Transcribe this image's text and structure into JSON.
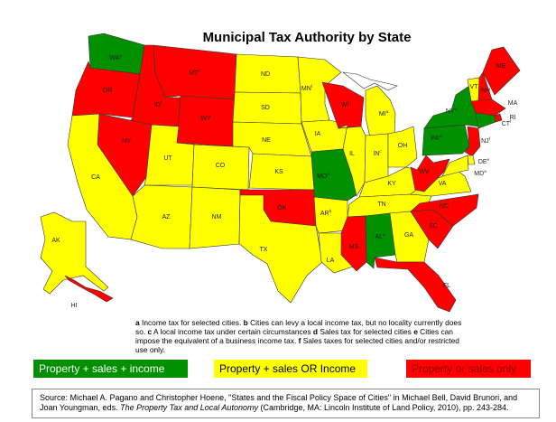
{
  "title": "Municipal Tax Authority by State",
  "colors": {
    "green": "#009000",
    "yellow": "#ffff00",
    "red": "#ff0000",
    "lakes": "#ffffff"
  },
  "states": [
    {
      "abbr": "WA",
      "sup": "a",
      "category": "green"
    },
    {
      "abbr": "OR",
      "sup": "",
      "category": "red"
    },
    {
      "abbr": "ID",
      "sup": "f",
      "category": "red"
    },
    {
      "abbr": "MT",
      "sup": "f",
      "category": "red"
    },
    {
      "abbr": "WY",
      "sup": "",
      "category": "red"
    },
    {
      "abbr": "NV",
      "sup": "",
      "category": "red"
    },
    {
      "abbr": "CA",
      "sup": "",
      "category": "yellow"
    },
    {
      "abbr": "UT",
      "sup": "",
      "category": "yellow"
    },
    {
      "abbr": "CO",
      "sup": "",
      "category": "yellow"
    },
    {
      "abbr": "AZ",
      "sup": "",
      "category": "yellow"
    },
    {
      "abbr": "NM",
      "sup": "",
      "category": "yellow"
    },
    {
      "abbr": "ND",
      "sup": "",
      "category": "yellow"
    },
    {
      "abbr": "SD",
      "sup": "",
      "category": "yellow"
    },
    {
      "abbr": "NE",
      "sup": "",
      "category": "yellow"
    },
    {
      "abbr": "KS",
      "sup": "",
      "category": "yellow"
    },
    {
      "abbr": "OK",
      "sup": "",
      "category": "red"
    },
    {
      "abbr": "TX",
      "sup": "",
      "category": "yellow"
    },
    {
      "abbr": "MN",
      "sup": "f",
      "category": "yellow"
    },
    {
      "abbr": "IA",
      "sup": "",
      "category": "yellow"
    },
    {
      "abbr": "MO",
      "sup": "a",
      "category": "green"
    },
    {
      "abbr": "AR",
      "sup": "b",
      "category": "yellow"
    },
    {
      "abbr": "LA",
      "sup": "",
      "category": "yellow"
    },
    {
      "abbr": "WI",
      "sup": "",
      "category": "red"
    },
    {
      "abbr": "IL",
      "sup": "",
      "category": "yellow"
    },
    {
      "abbr": "MI",
      "sup": "a",
      "category": "yellow"
    },
    {
      "abbr": "IN",
      "sup": "c",
      "category": "yellow"
    },
    {
      "abbr": "OH",
      "sup": "",
      "category": "yellow"
    },
    {
      "abbr": "KY",
      "sup": "",
      "category": "yellow"
    },
    {
      "abbr": "TN",
      "sup": "",
      "category": "yellow"
    },
    {
      "abbr": "MS",
      "sup": "",
      "category": "red"
    },
    {
      "abbr": "AL",
      "sup": "a",
      "category": "green"
    },
    {
      "abbr": "GA",
      "sup": "",
      "category": "yellow"
    },
    {
      "abbr": "FL",
      "sup": "",
      "category": "red"
    },
    {
      "abbr": "SC",
      "sup": "",
      "category": "red"
    },
    {
      "abbr": "NC",
      "sup": "",
      "category": "red"
    },
    {
      "abbr": "VA",
      "sup": "",
      "category": "yellow"
    },
    {
      "abbr": "WV",
      "sup": "",
      "category": "red"
    },
    {
      "abbr": "PA",
      "sup": "a",
      "category": "green"
    },
    {
      "abbr": "NY",
      "sup": "a",
      "category": "green"
    },
    {
      "abbr": "VT",
      "sup": "",
      "category": "yellow"
    },
    {
      "abbr": "NH",
      "sup": "",
      "category": "red"
    },
    {
      "abbr": "ME",
      "sup": "",
      "category": "red"
    },
    {
      "abbr": "MA",
      "sup": "",
      "category": "red"
    },
    {
      "abbr": "RI",
      "sup": "",
      "category": "red"
    },
    {
      "abbr": "CT",
      "sup": "f",
      "category": "green"
    },
    {
      "abbr": "NJ",
      "sup": "f",
      "category": "red"
    },
    {
      "abbr": "DE",
      "sup": "e",
      "category": "yellow"
    },
    {
      "abbr": "MD",
      "sup": "a",
      "category": "yellow"
    },
    {
      "abbr": "AK",
      "sup": "",
      "category": "yellow"
    },
    {
      "abbr": "HI",
      "sup": "",
      "category": "red"
    }
  ],
  "notes": [
    {
      "key": "a",
      "text": " Income tax for selected cities.  "
    },
    {
      "key": "b",
      "text": " Cities can levy a local income tax, but no locality currently does so.  "
    },
    {
      "key": "c",
      "text": " A local income tax under certain circumstances "
    },
    {
      "key": "d",
      "text": " Sales tax for selected cities "
    },
    {
      "key": "e",
      "text": " Cities can impose the equivalent of a business income tax. "
    },
    {
      "key": "f",
      "text": " Sales taxes for selected cities and/or restricted use only."
    }
  ],
  "legend": [
    {
      "label": "Property + sales + income",
      "color": "green",
      "text_color": "#ffffff"
    },
    {
      "label": "Property + sales OR Income",
      "color": "yellow",
      "text_color": "#000000"
    },
    {
      "label": "Property or sales only",
      "color": "red",
      "text_color": "#8b0000"
    }
  ],
  "source": {
    "prefix": "Source: Michael A. Pagano and Christopher Hoene, \"States and the Fiscal Policy Space of Cities\" in Michael Bell, David Brunori, and Joan Youngman, eds. ",
    "book": "The Property Tax and Local Autonomy",
    "suffix": " (Cambridge, MA: Lincoln Institute of Land Policy, 2010), pp. 243-284."
  }
}
